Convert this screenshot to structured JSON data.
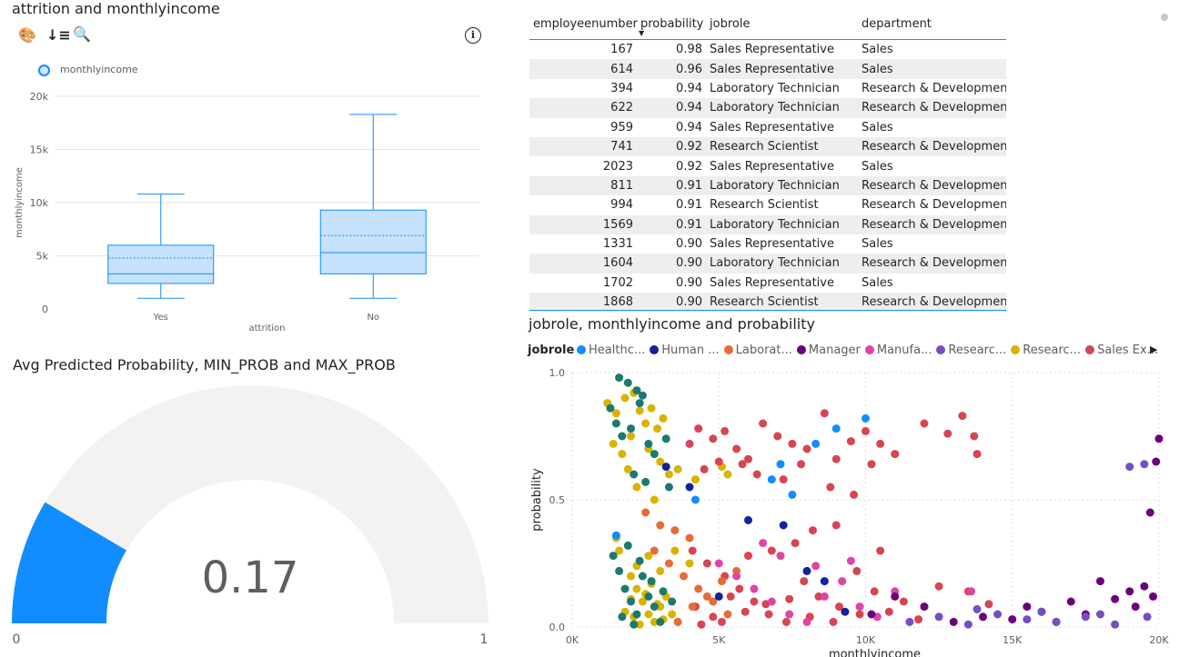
{
  "boxplot": {
    "title": "attrition and monthlyincome",
    "legend_label": "monthlyincome",
    "toolbar": {
      "format_icon": "🎨",
      "sort_icon": "↓≡",
      "zoom_icon": "🔍",
      "info_icon": "i"
    },
    "chart_data": {
      "type": "boxplot",
      "xlabel": "attrition",
      "ylabel": "monthlyincome",
      "ylim": [
        0,
        20000
      ],
      "yticks": [
        "0",
        "5k",
        "10k",
        "15k",
        "20k"
      ],
      "categories": [
        "Yes",
        "No"
      ],
      "boxes": [
        {
          "category": "Yes",
          "min": 1000,
          "q1": 2400,
          "median": 3300,
          "mean": 4800,
          "q3": 6000,
          "max": 10800
        },
        {
          "category": "No",
          "min": 1000,
          "q1": 3300,
          "median": 5300,
          "mean": 6900,
          "q3": 9300,
          "max": 18300
        }
      ],
      "color": "#118DFF"
    }
  },
  "table": {
    "columns": [
      "employeenumber",
      "probability",
      "jobrole",
      "department"
    ],
    "rows": [
      [
        "167",
        "0.98",
        "Sales Representative",
        "Sales"
      ],
      [
        "614",
        "0.96",
        "Sales Representative",
        "Sales"
      ],
      [
        "394",
        "0.94",
        "Laboratory Technician",
        "Research & Development"
      ],
      [
        "622",
        "0.94",
        "Laboratory Technician",
        "Research & Development"
      ],
      [
        "959",
        "0.94",
        "Sales Representative",
        "Sales"
      ],
      [
        "741",
        "0.92",
        "Research Scientist",
        "Research & Development"
      ],
      [
        "2023",
        "0.92",
        "Sales Representative",
        "Sales"
      ],
      [
        "811",
        "0.91",
        "Laboratory Technician",
        "Research & Development"
      ],
      [
        "994",
        "0.91",
        "Research Scientist",
        "Research & Development"
      ],
      [
        "1569",
        "0.91",
        "Laboratory Technician",
        "Research & Development"
      ],
      [
        "1331",
        "0.90",
        "Sales Representative",
        "Sales"
      ],
      [
        "1604",
        "0.90",
        "Laboratory Technician",
        "Research & Development"
      ],
      [
        "1702",
        "0.90",
        "Sales Representative",
        "Sales"
      ],
      [
        "1868",
        "0.90",
        "Research Scientist",
        "Research & Development"
      ]
    ]
  },
  "gauge": {
    "title": "Avg Predicted Probability, MIN_PROB and MAX_PROB",
    "chart_data": {
      "type": "gauge",
      "value": 0.17,
      "value_label": "0.17",
      "min": 0,
      "max": 1,
      "min_label": "0",
      "max_label": "1",
      "fill_color": "#118DFF",
      "track_color": "#F3F2F1"
    }
  },
  "scatter": {
    "title": "jobrole, monthlyincome and probability",
    "legend_title": "jobrole",
    "legend": [
      {
        "label": "Healthc...",
        "color": "#118DFF"
      },
      {
        "label": "Human ...",
        "color": "#12239E"
      },
      {
        "label": "Laborat...",
        "color": "#E66C37"
      },
      {
        "label": "Manager",
        "color": "#6B007B"
      },
      {
        "label": "Manufa...",
        "color": "#E044A7"
      },
      {
        "label": "Researc...",
        "color": "#744EC2"
      },
      {
        "label": "Researc...",
        "color": "#D9B300"
      },
      {
        "label": "Sales Ex...",
        "color": "#D64550"
      }
    ],
    "chart_data": {
      "type": "scatter",
      "xlabel": "monthlyincome",
      "ylabel": "probability",
      "xlim": [
        0,
        20000
      ],
      "ylim": [
        0,
        1
      ],
      "xticks": [
        "0K",
        "5K",
        "10K",
        "15K",
        "20K"
      ],
      "yticks": [
        "0.0",
        "0.5",
        "1.0"
      ],
      "series": [
        {
          "color": "#D9B300",
          "points": [
            [
              1200,
              0.88
            ],
            [
              1500,
              0.84
            ],
            [
              1800,
              0.9
            ],
            [
              2100,
              0.92
            ],
            [
              2300,
              0.85
            ],
            [
              2500,
              0.8
            ],
            [
              2700,
              0.86
            ],
            [
              2900,
              0.78
            ],
            [
              3100,
              0.82
            ],
            [
              1400,
              0.72
            ],
            [
              1700,
              0.68
            ],
            [
              2000,
              0.75
            ],
            [
              2600,
              0.7
            ],
            [
              3000,
              0.65
            ],
            [
              3300,
              0.6
            ],
            [
              2200,
              0.55
            ],
            [
              2800,
              0.5
            ],
            [
              1900,
              0.62
            ],
            [
              3600,
              0.62
            ],
            [
              4200,
              0.58
            ],
            [
              5100,
              0.63
            ],
            [
              5300,
              0.6
            ],
            [
              1600,
              0.3
            ],
            [
              2000,
              0.2
            ],
            [
              2200,
              0.15
            ],
            [
              2400,
              0.1
            ],
            [
              2600,
              0.05
            ],
            [
              2800,
              0.02
            ],
            [
              3000,
              0.08
            ],
            [
              3200,
              0.12
            ],
            [
              2100,
              0.04
            ],
            [
              2300,
              0.01
            ],
            [
              2500,
              0.13
            ],
            [
              2700,
              0.17
            ],
            [
              2900,
              0.09
            ],
            [
              3100,
              0.03
            ],
            [
              1800,
              0.06
            ],
            [
              2000,
              0.11
            ],
            [
              3400,
              0.05
            ],
            [
              3600,
              0.02
            ],
            [
              2200,
              0.24
            ],
            [
              2600,
              0.28
            ],
            [
              3000,
              0.22
            ],
            [
              3500,
              0.3
            ],
            [
              4000,
              0.25
            ],
            [
              1500,
              0.35
            ]
          ]
        },
        {
          "color": "#1B7A6E",
          "points": [
            [
              1600,
              0.98
            ],
            [
              1900,
              0.96
            ],
            [
              2200,
              0.93
            ],
            [
              2400,
              0.91
            ],
            [
              1300,
              0.86
            ],
            [
              1500,
              0.8
            ],
            [
              1700,
              0.75
            ],
            [
              2000,
              0.78
            ],
            [
              2300,
              0.88
            ],
            [
              2600,
              0.72
            ],
            [
              2800,
              0.68
            ],
            [
              3200,
              0.74
            ],
            [
              2100,
              0.6
            ],
            [
              2500,
              0.57
            ],
            [
              3300,
              0.55
            ],
            [
              1400,
              0.28
            ],
            [
              1600,
              0.22
            ],
            [
              1800,
              0.15
            ],
            [
              2000,
              0.1
            ],
            [
              2200,
              0.05
            ],
            [
              2400,
              0.2
            ],
            [
              2600,
              0.12
            ],
            [
              2800,
              0.08
            ],
            [
              3000,
              0.02
            ],
            [
              1900,
              0.32
            ],
            [
              2300,
              0.26
            ],
            [
              2700,
              0.18
            ],
            [
              3100,
              0.14
            ],
            [
              1700,
              0.04
            ],
            [
              2100,
              0.01
            ],
            [
              3400,
              0.1
            ]
          ]
        },
        {
          "color": "#D64550",
          "points": [
            [
              4000,
              0.72
            ],
            [
              4300,
              0.78
            ],
            [
              4800,
              0.74
            ],
            [
              5200,
              0.77
            ],
            [
              5600,
              0.7
            ],
            [
              6000,
              0.66
            ],
            [
              6500,
              0.8
            ],
            [
              7000,
              0.75
            ],
            [
              7500,
              0.72
            ],
            [
              8000,
              0.7
            ],
            [
              8600,
              0.84
            ],
            [
              9000,
              0.66
            ],
            [
              9500,
              0.73
            ],
            [
              10000,
              0.77
            ],
            [
              10500,
              0.72
            ],
            [
              11000,
              0.68
            ],
            [
              12000,
              0.8
            ],
            [
              12800,
              0.76
            ],
            [
              13300,
              0.83
            ],
            [
              13700,
              0.75
            ],
            [
              13800,
              0.68
            ],
            [
              4500,
              0.62
            ],
            [
              5000,
              0.65
            ],
            [
              5800,
              0.64
            ],
            [
              6300,
              0.6
            ],
            [
              7200,
              0.58
            ],
            [
              7800,
              0.64
            ],
            [
              8800,
              0.55
            ],
            [
              9600,
              0.52
            ],
            [
              10200,
              0.64
            ],
            [
              4100,
              0.3
            ],
            [
              4600,
              0.25
            ],
            [
              5200,
              0.2
            ],
            [
              5700,
              0.15
            ],
            [
              6200,
              0.1
            ],
            [
              6700,
              0.05
            ],
            [
              7300,
              0.02
            ],
            [
              7900,
              0.18
            ],
            [
              8400,
              0.12
            ],
            [
              9100,
              0.08
            ],
            [
              9700,
              0.22
            ],
            [
              10300,
              0.14
            ],
            [
              10800,
              0.06
            ],
            [
              11300,
              0.1
            ],
            [
              11800,
              0.03
            ],
            [
              4200,
              0.08
            ],
            [
              4800,
              0.04
            ],
            [
              5400,
              0.12
            ],
            [
              6000,
              0.28
            ],
            [
              6800,
              0.3
            ],
            [
              7600,
              0.33
            ],
            [
              8200,
              0.38
            ],
            [
              9000,
              0.4
            ],
            [
              10500,
              0.3
            ],
            [
              12500,
              0.16
            ],
            [
              13500,
              0.14
            ],
            [
              14200,
              0.09
            ],
            [
              4400,
              0.01
            ],
            [
              5100,
              0.02
            ],
            [
              5900,
              0.06
            ],
            [
              6600,
              0.09
            ],
            [
              7400,
              0.11
            ],
            [
              8100,
              0.04
            ],
            [
              8900,
              0.02
            ],
            [
              9800,
              0.05
            ]
          ]
        },
        {
          "color": "#E66C37",
          "points": [
            [
              2500,
              0.45
            ],
            [
              3000,
              0.4
            ],
            [
              3500,
              0.38
            ],
            [
              4000,
              0.35
            ],
            [
              2800,
              0.3
            ],
            [
              3300,
              0.25
            ],
            [
              3800,
              0.2
            ],
            [
              4300,
              0.15
            ],
            [
              4800,
              0.1
            ],
            [
              5300,
              0.05
            ],
            [
              3600,
              0.02
            ],
            [
              4100,
              0.08
            ],
            [
              4600,
              0.12
            ],
            [
              5100,
              0.18
            ],
            [
              5600,
              0.22
            ]
          ]
        },
        {
          "color": "#E044A7",
          "points": [
            [
              5000,
              0.25
            ],
            [
              5600,
              0.2
            ],
            [
              6200,
              0.15
            ],
            [
              6800,
              0.1
            ],
            [
              7400,
              0.05
            ],
            [
              8000,
              0.02
            ],
            [
              8600,
              0.12
            ],
            [
              9200,
              0.18
            ],
            [
              9800,
              0.08
            ],
            [
              10400,
              0.04
            ],
            [
              11000,
              0.14
            ],
            [
              6500,
              0.33
            ],
            [
              7100,
              0.28
            ],
            [
              8300,
              0.24
            ],
            [
              9500,
              0.26
            ],
            [
              13600,
              0.14
            ]
          ]
        },
        {
          "color": "#6B007B",
          "points": [
            [
              10200,
              0.05
            ],
            [
              11000,
              0.12
            ],
            [
              12000,
              0.08
            ],
            [
              13000,
              0.02
            ],
            [
              14000,
              0.04
            ],
            [
              15000,
              0.03
            ],
            [
              16000,
              0.06
            ],
            [
              17000,
              0.1
            ],
            [
              18000,
              0.18
            ],
            [
              19000,
              0.14
            ],
            [
              19500,
              0.16
            ],
            [
              19800,
              0.12
            ],
            [
              20000,
              0.74
            ],
            [
              19900,
              0.65
            ],
            [
              19700,
              0.45
            ],
            [
              15500,
              0.08
            ],
            [
              16500,
              0.02
            ],
            [
              17500,
              0.05
            ],
            [
              18500,
              0.11
            ],
            [
              19200,
              0.08
            ]
          ]
        },
        {
          "color": "#744EC2",
          "points": [
            [
              11500,
              0.02
            ],
            [
              12500,
              0.04
            ],
            [
              13500,
              0.01
            ],
            [
              14500,
              0.05
            ],
            [
              15500,
              0.03
            ],
            [
              16500,
              0.02
            ],
            [
              17500,
              0.04
            ],
            [
              18500,
              0.01
            ],
            [
              19000,
              0.63
            ],
            [
              19500,
              0.64
            ],
            [
              13800,
              0.07
            ],
            [
              16000,
              0.06
            ],
            [
              18000,
              0.05
            ],
            [
              19600,
              0.04
            ]
          ]
        },
        {
          "color": "#118DFF",
          "points": [
            [
              7100,
              0.64
            ],
            [
              8300,
              0.72
            ],
            [
              9000,
              0.78
            ],
            [
              10000,
              0.82
            ],
            [
              6800,
              0.58
            ],
            [
              7500,
              0.52
            ],
            [
              4200,
              0.5
            ],
            [
              1500,
              0.36
            ]
          ]
        },
        {
          "color": "#12239E",
          "points": [
            [
              3200,
              0.63
            ],
            [
              4000,
              0.55
            ],
            [
              6000,
              0.42
            ],
            [
              7200,
              0.4
            ],
            [
              8000,
              0.22
            ],
            [
              8600,
              0.18
            ],
            [
              9300,
              0.06
            ],
            [
              5000,
              0.12
            ]
          ]
        }
      ]
    }
  }
}
